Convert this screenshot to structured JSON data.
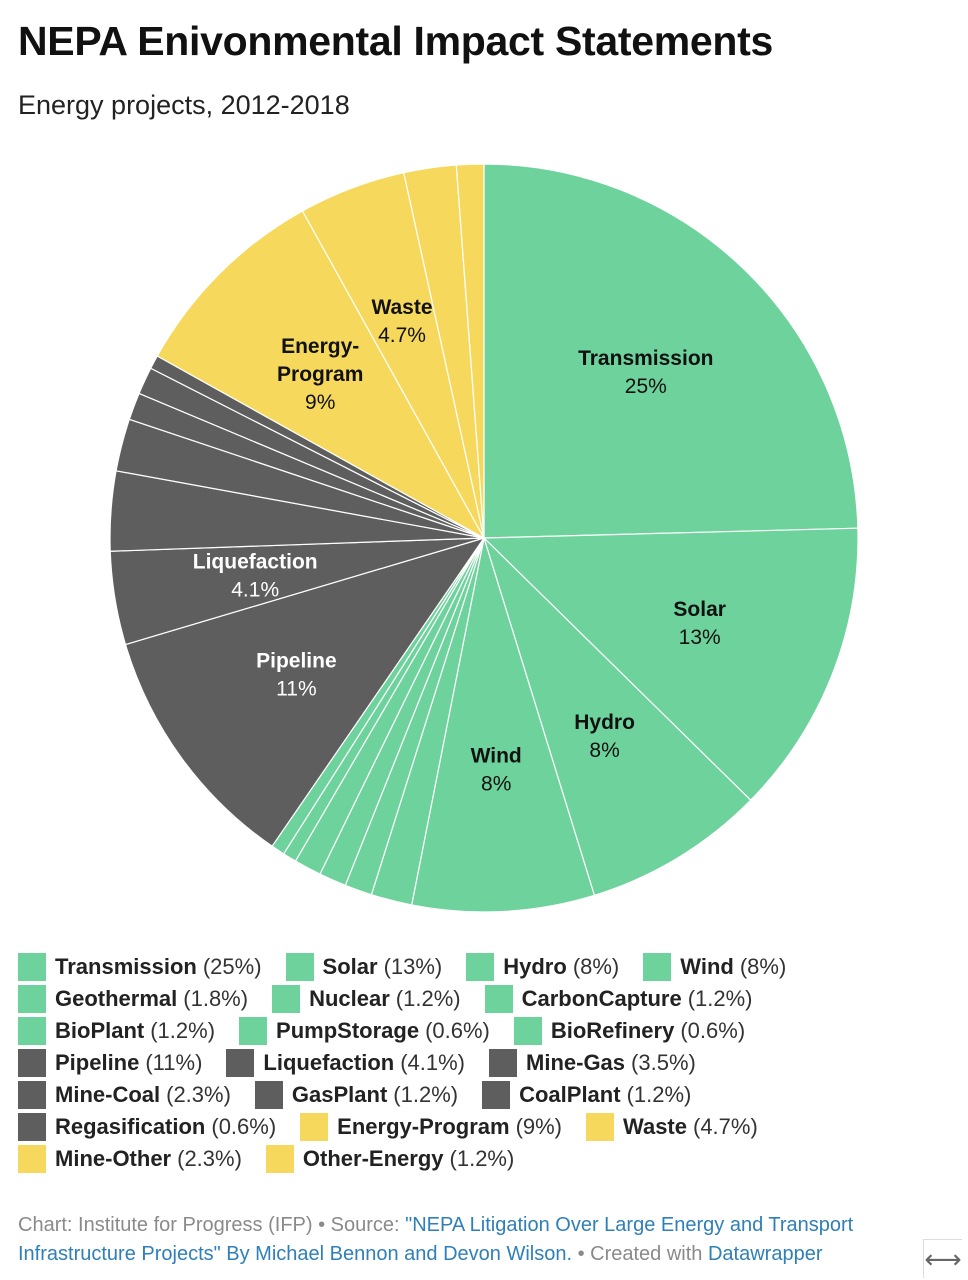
{
  "header": {
    "title": "NEPA Enivonmental Impact Statements",
    "subtitle": "Energy projects, 2012-2018"
  },
  "colors": {
    "green": "#6dd29b",
    "gray": "#5e5e5e",
    "yellow": "#f6d95c"
  },
  "chart_data": {
    "type": "pie",
    "title": "NEPA Enivonmental Impact Statements",
    "subtitle": "Energy projects, 2012-2018",
    "slices": [
      {
        "name": "Transmission",
        "value": 25,
        "pct_label": "25%",
        "group": "green",
        "label_on_chart": true
      },
      {
        "name": "Solar",
        "value": 13,
        "pct_label": "13%",
        "group": "green",
        "label_on_chart": true
      },
      {
        "name": "Hydro",
        "value": 8,
        "pct_label": "8%",
        "group": "green",
        "label_on_chart": true
      },
      {
        "name": "Wind",
        "value": 8,
        "pct_label": "8%",
        "group": "green",
        "label_on_chart": true
      },
      {
        "name": "Geothermal",
        "value": 1.8,
        "pct_label": "1.8%",
        "group": "green",
        "label_on_chart": false
      },
      {
        "name": "Nuclear",
        "value": 1.2,
        "pct_label": "1.2%",
        "group": "green",
        "label_on_chart": false
      },
      {
        "name": "CarbonCapture",
        "value": 1.2,
        "pct_label": "1.2%",
        "group": "green",
        "label_on_chart": false
      },
      {
        "name": "BioPlant",
        "value": 1.2,
        "pct_label": "1.2%",
        "group": "green",
        "label_on_chart": false
      },
      {
        "name": "PumpStorage",
        "value": 0.6,
        "pct_label": "0.6%",
        "group": "green",
        "label_on_chart": false
      },
      {
        "name": "BioRefinery",
        "value": 0.6,
        "pct_label": "0.6%",
        "group": "green",
        "label_on_chart": false
      },
      {
        "name": "Pipeline",
        "value": 11,
        "pct_label": "11%",
        "group": "gray",
        "label_on_chart": true
      },
      {
        "name": "Liquefaction",
        "value": 4.1,
        "pct_label": "4.1%",
        "group": "gray",
        "label_on_chart": true
      },
      {
        "name": "Mine-Gas",
        "value": 3.5,
        "pct_label": "3.5%",
        "group": "gray",
        "label_on_chart": false
      },
      {
        "name": "Mine-Coal",
        "value": 2.3,
        "pct_label": "2.3%",
        "group": "gray",
        "label_on_chart": false
      },
      {
        "name": "GasPlant",
        "value": 1.2,
        "pct_label": "1.2%",
        "group": "gray",
        "label_on_chart": false
      },
      {
        "name": "CoalPlant",
        "value": 1.2,
        "pct_label": "1.2%",
        "group": "gray",
        "label_on_chart": false
      },
      {
        "name": "Regasification",
        "value": 0.6,
        "pct_label": "0.6%",
        "group": "gray",
        "label_on_chart": false
      },
      {
        "name": "Energy-Program",
        "chart_label_lines": [
          "Energy-",
          "Program"
        ],
        "value": 9,
        "pct_label": "9%",
        "group": "yellow",
        "label_on_chart": true
      },
      {
        "name": "Waste",
        "value": 4.7,
        "pct_label": "4.7%",
        "group": "yellow",
        "label_on_chart": true
      },
      {
        "name": "Mine-Other",
        "value": 2.3,
        "pct_label": "2.3%",
        "group": "yellow",
        "label_on_chart": false
      },
      {
        "name": "Other-Energy",
        "value": 1.2,
        "pct_label": "1.2%",
        "group": "yellow",
        "label_on_chart": false
      }
    ],
    "legend_placement": "bottom"
  },
  "footer": {
    "chart_prefix": "Chart: Institute for Progress (IFP) • Source: ",
    "source_link": "\"NEPA Litigation Over Large Energy and Transport Infrastructure Projects\" By Michael Bennon and Devon Wilson.",
    "created_text": " • Created with ",
    "datawrapper_link": "Datawrapper"
  },
  "expand_icon": "expand-horizontal-icon"
}
